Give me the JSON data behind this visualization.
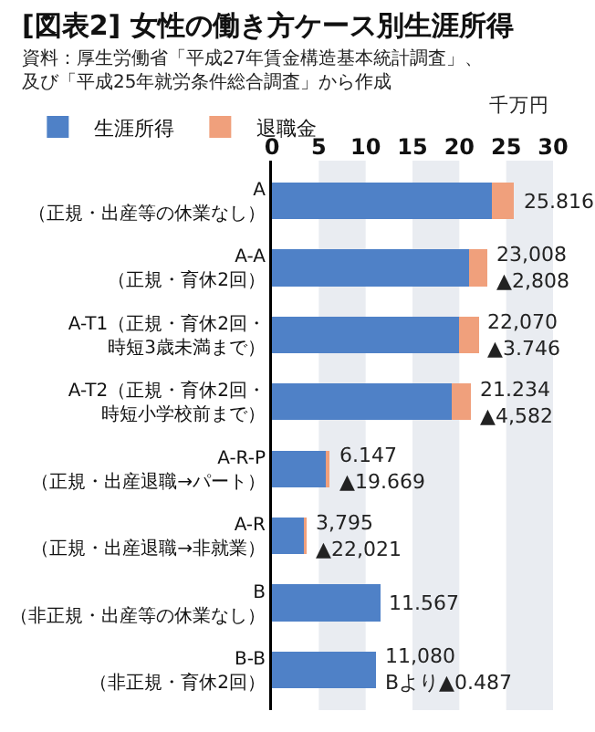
{
  "chart_data": {
    "type": "bar",
    "orientation": "horizontal",
    "stacked": true,
    "title": "[図表2] 女性の働き方ケース別生涯所得",
    "subtitle": "資料：厚生労働省「平成27年賃金構造基本統計調査」、及び「平成25年就労条件総合調査」から作成",
    "xlabel": "千万円",
    "categories": [
      "A\n（正規・出産等の休業なし）",
      "A-A\n（正規・育休2回）",
      "A-T1（正規・育休2回・時短3歳未満まで）",
      "A-T2（正規・育休2回・時短小学校前まで）",
      "A-R-P\n（正規・出産退職→パート）",
      "A-R\n（正規・出産退職→非就業）",
      "B\n（非正規・出産等の休業なし）",
      "B-B\n（非正規・育休2回）"
    ],
    "series": [
      {
        "name": "生涯所得",
        "color": "#4f81c7",
        "values": [
          23.5,
          21.0,
          20.0,
          19.2,
          5.7,
          3.4,
          11.6,
          11.1
        ]
      },
      {
        "name": "退職金",
        "color": "#f0a07c",
        "values": [
          2.3,
          2.0,
          2.1,
          2.0,
          0.4,
          0.3,
          null,
          null
        ]
      }
    ],
    "annotations": [
      {
        "text": "25.816",
        "x": 25.816,
        "y": "A\n（正規・出産等の休業なし）"
      },
      {
        "text": "23,008\n▲2,808",
        "x": 23.008,
        "y": "A-A\n（正規・育休2回）"
      },
      {
        "text": "22,070\n▲3.746",
        "x": 22.07,
        "y": "A-T1（正規・育休2回・時短3歳未満まで）"
      },
      {
        "text": "21.234\n▲4,582",
        "x": 21.234,
        "y": "A-T2（正規・育休2回・時短小学校前まで）"
      },
      {
        "text": "6.147\n▲19.669",
        "x": 6.147,
        "y": "A-R-P\n（正規・出産退職→パート）"
      },
      {
        "text": "3,795\n▲22,021",
        "x": 3.795,
        "y": "A-R\n（正規・出産退職→非就業）"
      },
      {
        "text": "11.567",
        "x": 11.567,
        "y": "B\n（非正規・出産等の休業なし）"
      },
      {
        "text": "11,080\nBより▲0.487",
        "x": 11.08,
        "y": "B-B\n（非正規・育休2回）"
      }
    ],
    "xlim": [
      0,
      30
    ],
    "xticks": [
      0,
      5,
      10,
      15,
      20,
      25,
      30
    ],
    "bands": [
      {
        "axis": "x",
        "from": 5,
        "to": 10,
        "color": "#e9ecf1"
      },
      {
        "axis": "x",
        "from": 15,
        "to": 20,
        "color": "#e9ecf1"
      },
      {
        "axis": "x",
        "from": 25,
        "to": 30,
        "color": "#e9ecf1"
      }
    ],
    "grid": false,
    "legend": "top left"
  }
}
